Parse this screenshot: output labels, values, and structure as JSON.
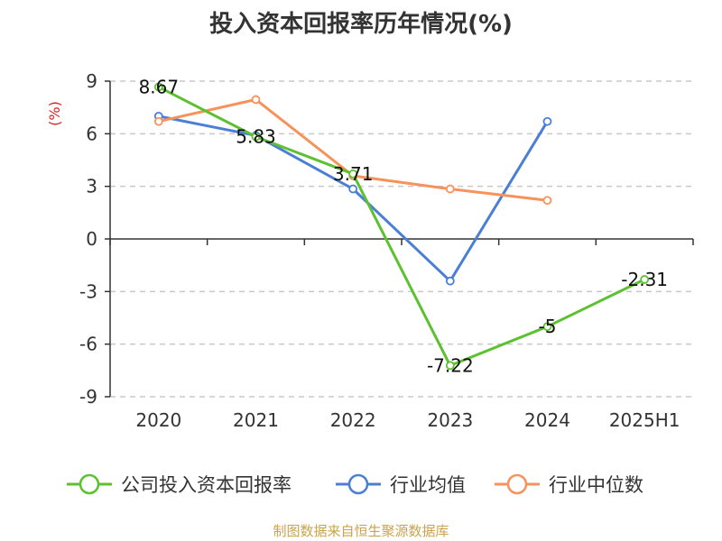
{
  "chart_data": {
    "type": "line",
    "title": "投入资本回报率历年情况(%)",
    "ylabel": "(%)",
    "categories": [
      "2020",
      "2021",
      "2022",
      "2023",
      "2024",
      "2025H1"
    ],
    "ylim": [
      -9,
      9
    ],
    "yticks": [
      9,
      6,
      3,
      0,
      -3,
      -6,
      -9
    ],
    "grid": true,
    "legend_position": "bottom",
    "series": [
      {
        "name": "公司投入资本回报率",
        "color": "#5cc130",
        "values": [
          8.67,
          5.83,
          3.71,
          -7.22,
          -5,
          -2.31
        ],
        "labels": [
          "8.67",
          "5.83",
          "3.71",
          "-7.22",
          "-5",
          "-2.31"
        ]
      },
      {
        "name": "行业均值",
        "color": "#4b7fd6",
        "values": [
          7.0,
          5.9,
          2.85,
          -2.4,
          6.7,
          null
        ]
      },
      {
        "name": "行业中位数",
        "color": "#f6925a",
        "values": [
          6.7,
          7.95,
          3.6,
          2.85,
          2.2,
          null
        ]
      }
    ]
  },
  "source": "制图数据来自恒生聚源数据库"
}
